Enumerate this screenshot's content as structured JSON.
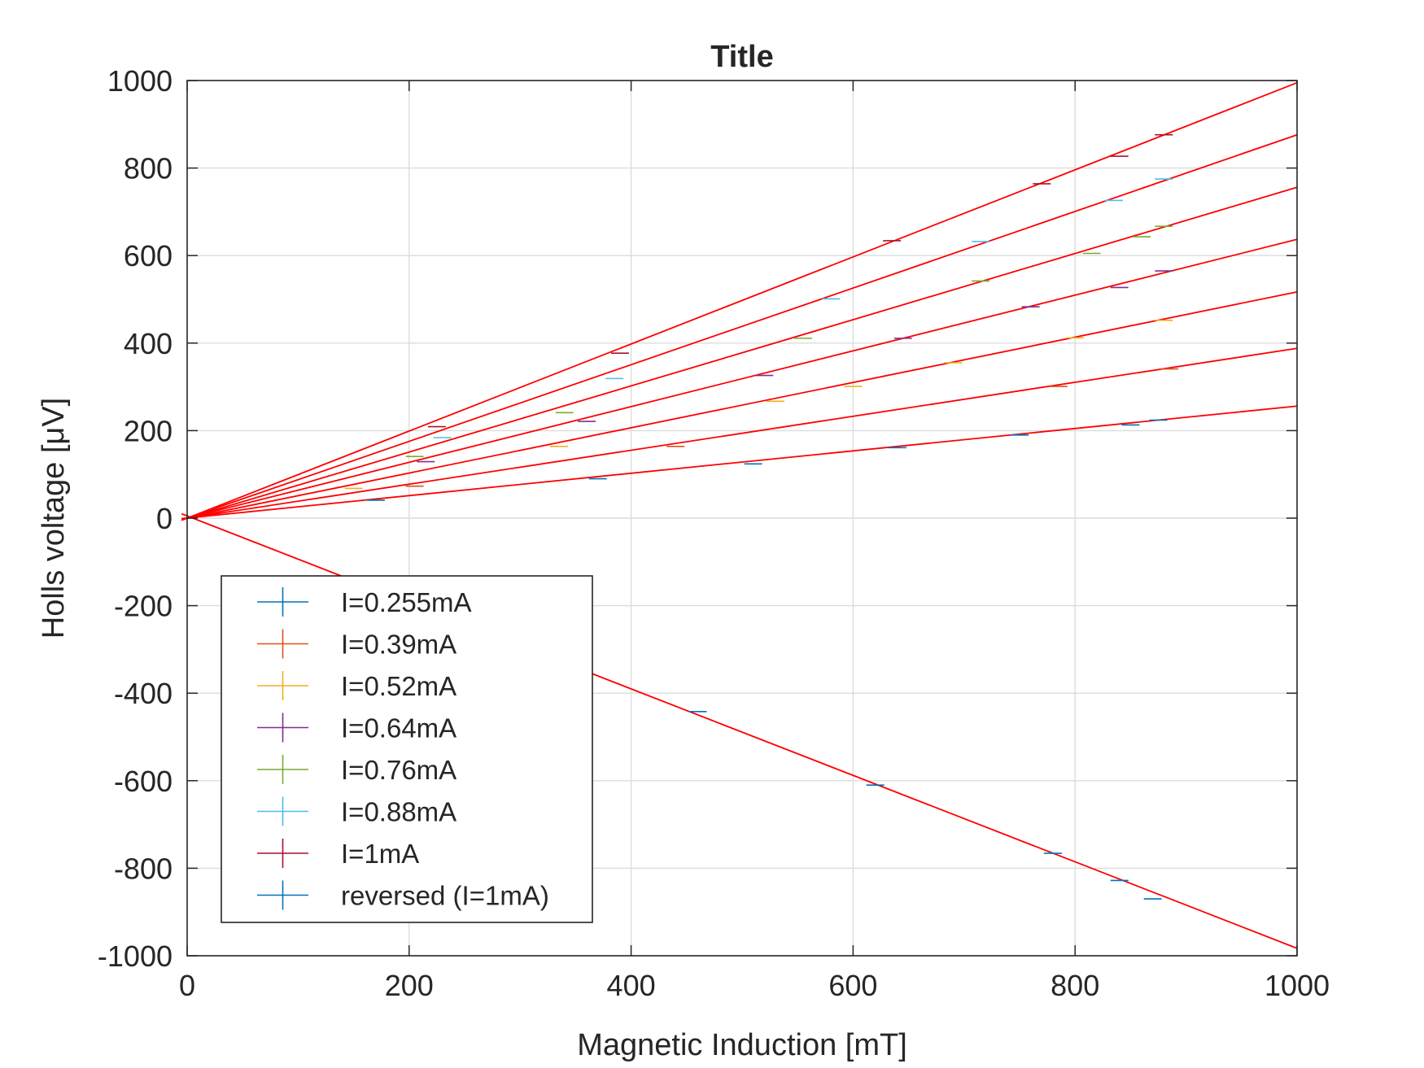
{
  "chart_data": {
    "type": "scatter",
    "title": "Title",
    "xlabel": "Magnetic Induction [mT]",
    "ylabel": "Holls voltage [μV]",
    "xlim": [
      0,
      1000
    ],
    "ylim": [
      -1000,
      1000
    ],
    "xticks": [
      "0",
      "200",
      "400",
      "600",
      "800",
      "1000"
    ],
    "yticks": [
      "-1000",
      "-800",
      "-600",
      "-400",
      "-200",
      "0",
      "200",
      "400",
      "600",
      "800",
      "1000"
    ],
    "grid": true,
    "legend_position": "lower-left",
    "fit_line_color": "#ff0000",
    "series": [
      {
        "name": "I=0.255mA",
        "color": "#0072bd",
        "x": [
          170,
          370,
          510,
          640,
          750,
          850,
          875
        ],
        "y": [
          41,
          90,
          124,
          161,
          190,
          213,
          224
        ]
      },
      {
        "name": "I=0.39mA",
        "color": "#d95319",
        "x": [
          205,
          440,
          785,
          885
        ],
        "y": [
          73,
          164,
          301,
          341
        ]
      },
      {
        "name": "I=0.52mA",
        "color": "#edb120",
        "x": [
          150,
          335,
          530,
          600,
          690,
          800,
          880
        ],
        "y": [
          68,
          164,
          267,
          301,
          355,
          412,
          452
        ]
      },
      {
        "name": "I=0.64mA",
        "color": "#7e2f8e",
        "x": [
          215,
          360,
          520,
          645,
          760,
          840,
          880
        ],
        "y": [
          129,
          221,
          326,
          411,
          483,
          527,
          565
        ]
      },
      {
        "name": "I=0.76mA",
        "color": "#77ac30",
        "x": [
          205,
          340,
          555,
          715,
          815,
          860,
          880
        ],
        "y": [
          141,
          241,
          411,
          542,
          605,
          643,
          667
        ]
      },
      {
        "name": "I=0.88mA",
        "color": "#4dbeee",
        "x": [
          230,
          385,
          580,
          715,
          835,
          880
        ],
        "y": [
          184,
          319,
          501,
          632,
          726,
          775
        ]
      },
      {
        "name": "I=1mA",
        "color": "#a2142f",
        "x": [
          225,
          390,
          635,
          770,
          840,
          880
        ],
        "y": [
          209,
          377,
          634,
          764,
          827,
          876
        ]
      },
      {
        "name": "reversed (I=1mA)",
        "color": "#0072bd",
        "x": [
          460,
          620,
          780,
          840,
          870
        ],
        "y": [
          -442,
          -610,
          -766,
          -828,
          -870
        ]
      }
    ],
    "fit_lines": [
      {
        "x": [
          -5,
          1000
        ],
        "y": [
          -1,
          256
        ]
      },
      {
        "x": [
          -5,
          1000
        ],
        "y": [
          -2,
          388
        ]
      },
      {
        "x": [
          -5,
          1000
        ],
        "y": [
          -3,
          517
        ]
      },
      {
        "x": [
          -5,
          1000
        ],
        "y": [
          -3,
          637
        ]
      },
      {
        "x": [
          -5,
          1000
        ],
        "y": [
          -4,
          756
        ]
      },
      {
        "x": [
          -5,
          1000
        ],
        "y": [
          -4,
          876
        ]
      },
      {
        "x": [
          -5,
          1000
        ],
        "y": [
          -5,
          995
        ]
      },
      {
        "x": [
          -5,
          1000
        ],
        "y": [
          10,
          -983
        ]
      }
    ]
  }
}
